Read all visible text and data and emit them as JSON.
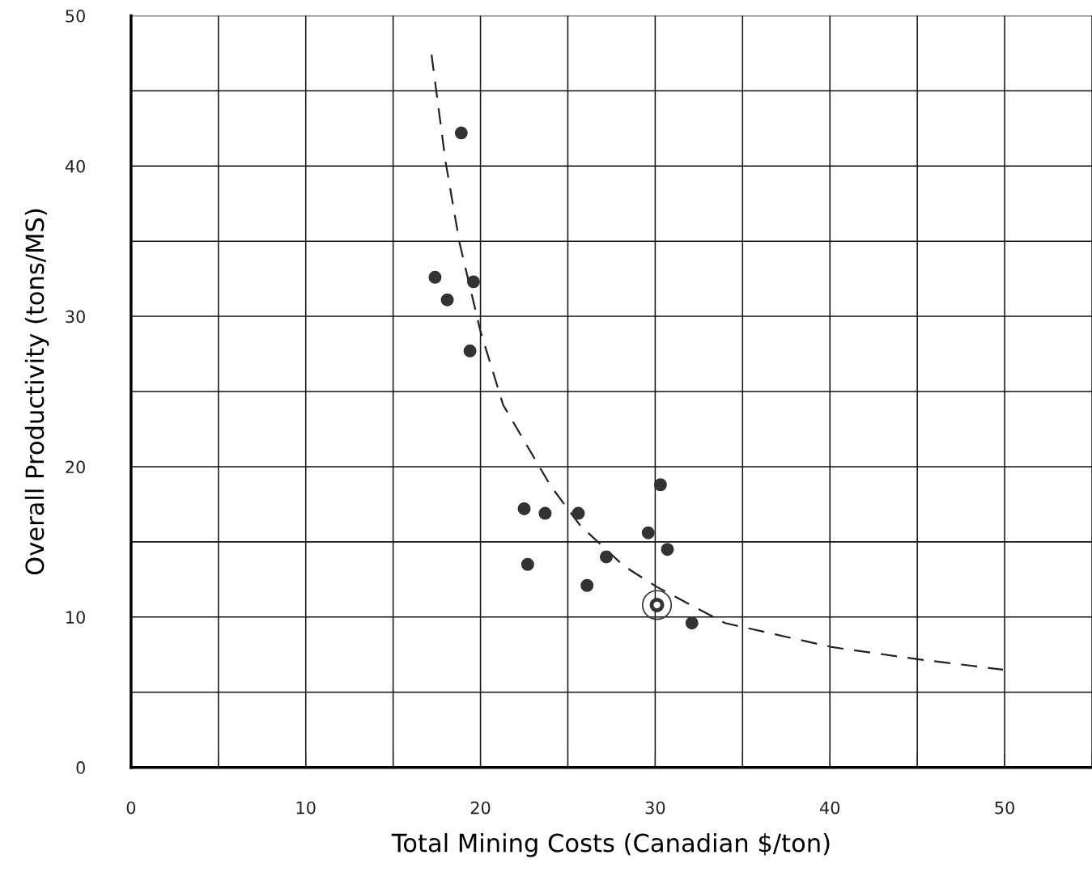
{
  "chart_data": {
    "type": "scatter",
    "xlabel": "Total Mining Costs (Canadian $/ton)",
    "ylabel": "Overall Productivity (tons/MS)",
    "xlim": [
      0,
      55
    ],
    "ylim": [
      0,
      50
    ],
    "xticks": [
      0,
      {
        "value": 5,
        "label": null
      },
      10,
      {
        "value": 15,
        "label": null
      },
      20,
      {
        "value": 25,
        "label": null
      },
      30,
      {
        "value": 35,
        "label": null
      },
      40,
      {
        "value": 45,
        "label": null
      },
      50,
      {
        "value": 55,
        "label": null
      }
    ],
    "yticks": [
      0,
      {
        "value": 5,
        "label": null
      },
      10,
      {
        "value": 15,
        "label": null
      },
      20,
      {
        "value": 25,
        "label": null
      },
      30,
      {
        "value": 35,
        "label": null
      },
      40,
      {
        "value": 45,
        "label": null
      },
      50
    ],
    "grid": true,
    "marker": "circle",
    "series": [
      {
        "color": "#333333",
        "x": [
          18.9,
          17.4,
          18.1,
          19.6,
          19.4,
          22.5,
          22.7,
          23.7,
          25.6,
          26.1,
          27.2,
          29.6,
          30.3,
          30.7,
          32.1
        ],
        "values": [
          42.2,
          32.6,
          31.1,
          32.3,
          27.7,
          17.2,
          13.5,
          16.9,
          16.9,
          12.1,
          14.0,
          15.6,
          18.8,
          14.5,
          9.6
        ]
      },
      {
        "color": "#333333",
        "marker": "circle",
        "x": [
          30.1
        ],
        "values": [
          10.8
        ]
      },
      {
        "type": "line",
        "color": "#222222",
        "line_style": "dashed",
        "marker": "none",
        "x": [
          17.2,
          18.0,
          18.8,
          20.0,
          21.3,
          24.0,
          25.7,
          28.2,
          30.1,
          32.2,
          34.0,
          40.1,
          45.0,
          49.9
        ],
        "values": [
          47.4,
          40.3,
          34.9,
          29.0,
          24.1,
          18.75,
          16.1,
          13.4,
          12.0,
          10.7,
          9.6,
          8.0,
          7.2,
          6.5
        ]
      }
    ]
  }
}
